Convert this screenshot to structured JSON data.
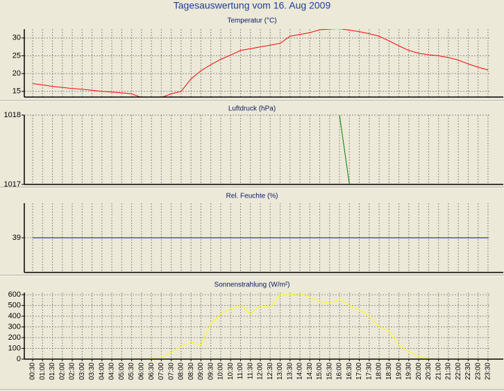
{
  "title": "Tagesauswertung vom 16. Aug 2009",
  "chart_data": [
    {
      "type": "line",
      "title": "Temperatur (°C)",
      "color": "#ff0000",
      "ylim": [
        13.4,
        32.5
      ],
      "yticks": [
        15,
        20,
        25,
        30
      ],
      "grid": true,
      "values": [
        17.2,
        16.8,
        16.4,
        16.1,
        15.8,
        15.6,
        15.3,
        15.0,
        14.8,
        14.6,
        14.3,
        13.3,
        13.2,
        13.3,
        14.3,
        15.0,
        18.5,
        20.8,
        22.5,
        24.0,
        25.2,
        26.5,
        27.0,
        27.5,
        28.0,
        28.5,
        30.5,
        31.0,
        31.5,
        32.3,
        32.5,
        32.6,
        32.2,
        31.8,
        31.2,
        30.5,
        29.2,
        27.8,
        26.5,
        25.7,
        25.3,
        25.0,
        24.5,
        23.8,
        22.7,
        21.8,
        21.0
      ]
    },
    {
      "type": "line",
      "title": "Luftdruck (hPa)",
      "color": "#008000",
      "ylim": [
        1017,
        1018
      ],
      "yticks": [
        1017,
        1018
      ],
      "grid": true,
      "values": [
        null,
        null,
        null,
        null,
        null,
        null,
        null,
        null,
        null,
        null,
        null,
        null,
        null,
        null,
        null,
        null,
        null,
        null,
        null,
        null,
        null,
        null,
        null,
        null,
        null,
        null,
        null,
        null,
        null,
        null,
        null,
        1018,
        1017,
        null,
        null,
        null,
        null,
        null,
        null,
        null,
        null,
        null,
        null,
        null,
        null,
        null,
        null
      ]
    },
    {
      "type": "line",
      "title": "Rel. Feuchte (%)",
      "color": "#0000c0",
      "ylim": [
        38,
        40
      ],
      "yticks": [
        39
      ],
      "grid": true,
      "values": [
        39,
        39,
        39,
        39,
        39,
        39,
        39,
        39,
        39,
        39,
        39,
        39,
        39,
        39,
        39,
        39,
        39,
        39,
        39,
        39,
        39,
        39,
        39,
        39,
        39,
        39,
        39,
        39,
        39,
        39,
        39,
        39,
        39,
        39,
        39,
        39,
        39,
        39,
        39,
        39,
        39,
        39,
        39,
        39,
        39,
        39,
        39
      ]
    },
    {
      "type": "line",
      "title": "Sonnenstrahlung (W/m²)",
      "color": "#ffff00",
      "ylim": [
        0,
        620
      ],
      "yticks": [
        0,
        100,
        200,
        300,
        400,
        500,
        600
      ],
      "grid": true,
      "categories": [
        "00:30",
        "01:00",
        "01:30",
        "02:00",
        "02:30",
        "03:00",
        "03:30",
        "04:00",
        "04:30",
        "05:00",
        "05:30",
        "06:00",
        "06:30",
        "07:00",
        "07:30",
        "08:00",
        "08:30",
        "09:00",
        "09:30",
        "10:00",
        "10:30",
        "11:00",
        "11:30",
        "12:00",
        "12:30",
        "13:00",
        "13:30",
        "14:00",
        "14:30",
        "15:00",
        "15:30",
        "16:00",
        "16:30",
        "17:00",
        "17:30",
        "18:00",
        "18:30",
        "19:00",
        "19:30",
        "20:00",
        "20:30",
        "21:00",
        "21:30",
        "22:00",
        "22:30",
        "23:00",
        "23:30"
      ],
      "values": [
        null,
        null,
        null,
        null,
        null,
        null,
        null,
        null,
        null,
        null,
        null,
        0,
        5,
        20,
        60,
        120,
        160,
        130,
        330,
        420,
        470,
        500,
        420,
        500,
        480,
        600,
        600,
        610,
        580,
        540,
        520,
        560,
        500,
        460,
        400,
        300,
        260,
        130,
        70,
        25,
        5,
        null,
        null,
        null,
        null,
        null,
        null
      ]
    }
  ]
}
